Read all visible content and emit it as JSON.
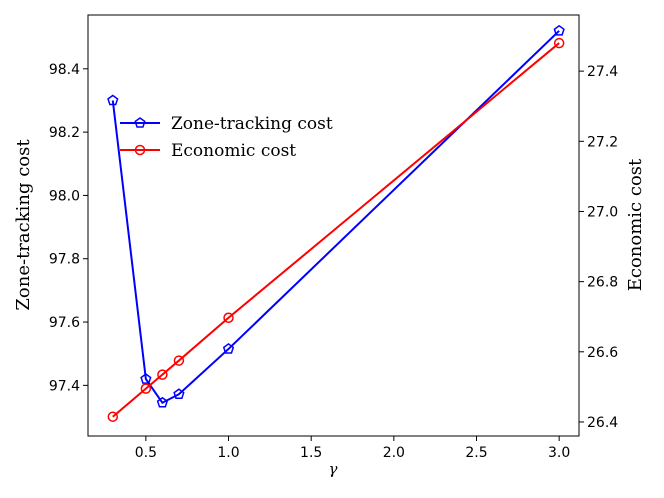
{
  "chart_data": {
    "type": "line",
    "xlabel": "γ",
    "ylabel_left": "Zone-tracking cost",
    "ylabel_right": "Economic cost",
    "xlim": [
      0.15,
      3.12
    ],
    "ylim_left": [
      97.24,
      98.57
    ],
    "ylim_right": [
      26.36,
      27.56
    ],
    "x_ticks": [
      "0.5",
      "1.0",
      "1.5",
      "2.0",
      "2.5",
      "3.0"
    ],
    "x_tick_values": [
      0.5,
      1.0,
      1.5,
      2.0,
      2.5,
      3.0
    ],
    "y_left_ticks": [
      "97.4",
      "97.6",
      "97.8",
      "98.0",
      "98.2",
      "98.4"
    ],
    "y_left_tick_values": [
      97.4,
      97.6,
      97.8,
      98.0,
      98.2,
      98.4
    ],
    "y_right_ticks": [
      "26.4",
      "26.6",
      "26.8",
      "27.0",
      "27.2",
      "27.4"
    ],
    "y_right_tick_values": [
      26.4,
      26.6,
      26.8,
      27.0,
      27.2,
      27.4
    ],
    "grid": false,
    "legend_position": "upper-left",
    "series": [
      {
        "name": "Zone-tracking cost",
        "axis": "left",
        "color": "#0000ff",
        "marker": "pentagon",
        "x": [
          0.3,
          0.5,
          0.6,
          0.7,
          1.0,
          3.0
        ],
        "y": [
          98.3,
          97.42,
          97.345,
          97.372,
          97.515,
          98.52
        ]
      },
      {
        "name": "Economic cost",
        "axis": "right",
        "color": "#ff0000",
        "marker": "circle",
        "x": [
          0.3,
          0.5,
          0.6,
          0.7,
          1.0,
          3.0
        ],
        "y": [
          26.415,
          26.495,
          26.535,
          26.575,
          26.697,
          27.48
        ]
      }
    ]
  }
}
